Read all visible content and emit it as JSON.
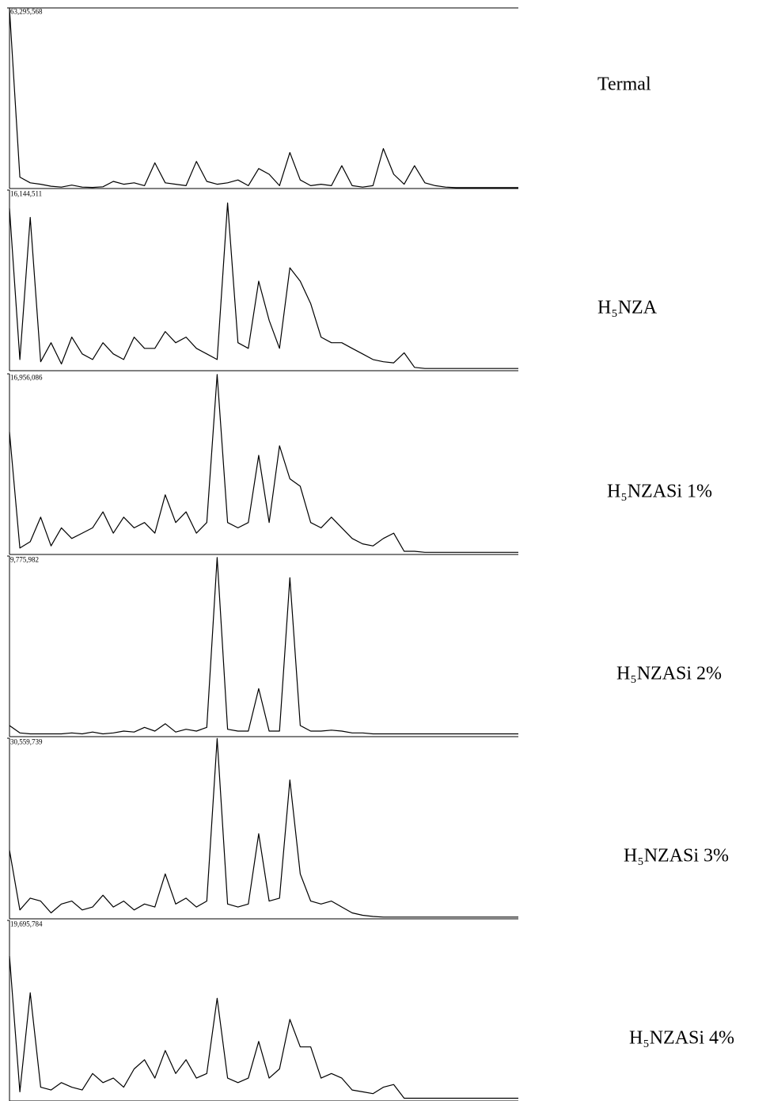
{
  "chart_data": [
    {
      "type": "line",
      "title": "Termal",
      "color": "#000000",
      "ylim": [
        0,
        63295568
      ],
      "yticks": [
        {
          "value": 63295568,
          "label": "63,295,568"
        }
      ],
      "values": [
        63000000,
        4000000,
        2000000,
        1500000,
        800000,
        500000,
        1200000,
        500000,
        400000,
        600000,
        2500000,
        1500000,
        2000000,
        1000000,
        9000000,
        2000000,
        1500000,
        1000000,
        9500000,
        2500000,
        1500000,
        2000000,
        3000000,
        1000000,
        7000000,
        5000000,
        1000000,
        12600000,
        3000000,
        1000000,
        1500000,
        1000000,
        8000000,
        1000000,
        500000,
        1000000,
        14000000,
        5000000,
        1500000,
        8000000,
        2000000,
        1000000,
        500000,
        300000,
        300000,
        300000,
        300000,
        300000,
        300000,
        300000
      ]
    },
    {
      "type": "line",
      "title": "H₅NZA",
      "color": "#000000",
      "ylim": [
        0,
        16144511
      ],
      "yticks": [
        {
          "value": 16144511,
          "label": "16,144,511"
        }
      ],
      "values": [
        14500000,
        1000000,
        13700000,
        800000,
        2500000,
        600000,
        3000000,
        1500000,
        1000000,
        2500000,
        1500000,
        1000000,
        3000000,
        2000000,
        2000000,
        3500000,
        2500000,
        3000000,
        2000000,
        1500000,
        1000000,
        15000000,
        2500000,
        2000000,
        8000000,
        4500000,
        2000000,
        9200000,
        8000000,
        6000000,
        3000000,
        2500000,
        2500000,
        2000000,
        1500000,
        1000000,
        800000,
        700000,
        1600000,
        300000,
        200000,
        200000,
        200000,
        200000,
        200000,
        200000,
        200000,
        200000,
        200000,
        200000
      ]
    },
    {
      "type": "line",
      "title": "H₅NZASi 1%",
      "color": "#000000",
      "ylim": [
        0,
        16956086
      ],
      "yticks": [
        {
          "value": 16956086,
          "label": "16,956,086"
        }
      ],
      "values": [
        11500000,
        600000,
        1200000,
        3500000,
        800000,
        2500000,
        1500000,
        2000000,
        2500000,
        4000000,
        2000000,
        3500000,
        2500000,
        3000000,
        2000000,
        5600000,
        3000000,
        4000000,
        2000000,
        3000000,
        16900000,
        3000000,
        2500000,
        3000000,
        9300000,
        3000000,
        10200000,
        7100000,
        6400000,
        3000000,
        2500000,
        3500000,
        2500000,
        1500000,
        1000000,
        800000,
        1500000,
        2000000,
        300000,
        300000,
        200000,
        200000,
        200000,
        200000,
        200000,
        200000,
        200000,
        200000,
        200000,
        200000
      ]
    },
    {
      "type": "line",
      "title": "H₅NZASi 2%",
      "color": "#000000",
      "ylim": [
        0,
        9775982
      ],
      "yticks": [
        {
          "value": 9775982,
          "label": "9,775,982"
        }
      ],
      "values": [
        600000,
        200000,
        150000,
        150000,
        150000,
        150000,
        200000,
        150000,
        250000,
        150000,
        200000,
        300000,
        250000,
        500000,
        300000,
        700000,
        250000,
        400000,
        300000,
        500000,
        9700000,
        400000,
        300000,
        300000,
        2600000,
        300000,
        300000,
        8600000,
        600000,
        300000,
        300000,
        350000,
        300000,
        200000,
        200000,
        150000,
        150000,
        150000,
        150000,
        150000,
        150000,
        150000,
        150000,
        150000,
        150000,
        150000,
        150000,
        150000,
        150000,
        150000
      ]
    },
    {
      "type": "line",
      "title": "H₅NZASi 3%",
      "color": "#000000",
      "ylim": [
        0,
        30559739
      ],
      "yticks": [
        {
          "value": 30559739,
          "label": "30,559,739"
        }
      ],
      "values": [
        11600000,
        1500000,
        3500000,
        3000000,
        1000000,
        2500000,
        3000000,
        1500000,
        2000000,
        4000000,
        2000000,
        3000000,
        1500000,
        2500000,
        2000000,
        7600000,
        2500000,
        3500000,
        2000000,
        3000000,
        30500000,
        2500000,
        2000000,
        2500000,
        14400000,
        3000000,
        3500000,
        23500000,
        7600000,
        3000000,
        2500000,
        3000000,
        2000000,
        1000000,
        600000,
        400000,
        300000,
        300000,
        300000,
        300000,
        300000,
        300000,
        300000,
        300000,
        300000,
        300000,
        300000,
        300000,
        300000,
        300000
      ]
    },
    {
      "type": "line",
      "title": "H₅NZASi 4%",
      "color": "#000000",
      "ylim": [
        0,
        19695784
      ],
      "yticks": [
        {
          "value": 19695784,
          "label": "19,695,784"
        }
      ],
      "values": [
        15800000,
        1000000,
        11800000,
        1500000,
        1200000,
        2000000,
        1500000,
        1200000,
        3000000,
        2000000,
        2500000,
        1500000,
        3500000,
        4500000,
        2500000,
        5500000,
        3000000,
        4500000,
        2500000,
        3000000,
        11200000,
        2500000,
        2000000,
        2500000,
        6500000,
        2500000,
        3500000,
        8900000,
        5900000,
        5900000,
        2500000,
        3000000,
        2500000,
        1200000,
        1000000,
        800000,
        1500000,
        1800000,
        300000,
        300000,
        300000,
        300000,
        300000,
        300000,
        300000,
        300000,
        300000,
        300000,
        300000,
        300000
      ]
    }
  ]
}
